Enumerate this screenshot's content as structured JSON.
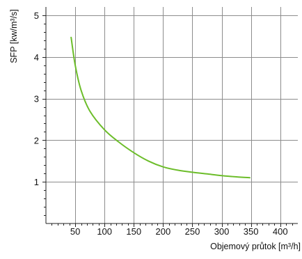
{
  "chart_data": {
    "type": "line",
    "title": "",
    "xlabel": "Objemový průtok [m³/h]",
    "ylabel": "SFP [kw/m³/s]",
    "xlim": [
      0,
      430
    ],
    "ylim": [
      0,
      5.2
    ],
    "x_ticks": [
      50,
      100,
      150,
      200,
      250,
      300,
      350,
      400
    ],
    "y_ticks": [
      1,
      2,
      3,
      4,
      5
    ],
    "x_tick_labels": [
      "50",
      "100",
      "150",
      "200",
      "250",
      "300",
      "350",
      "400"
    ],
    "y_tick_labels": [
      "1",
      "2",
      "3",
      "4",
      "5"
    ],
    "grid": true,
    "legend": "none",
    "series": [
      {
        "color": "#6cbd2a",
        "x": [
          43,
          50,
          60,
          75,
          100,
          125,
          150,
          175,
          200,
          225,
          250,
          275,
          300,
          325,
          348
        ],
        "y": [
          4.47,
          3.8,
          3.2,
          2.7,
          2.25,
          1.95,
          1.7,
          1.5,
          1.36,
          1.28,
          1.23,
          1.19,
          1.15,
          1.12,
          1.1
        ]
      }
    ]
  }
}
